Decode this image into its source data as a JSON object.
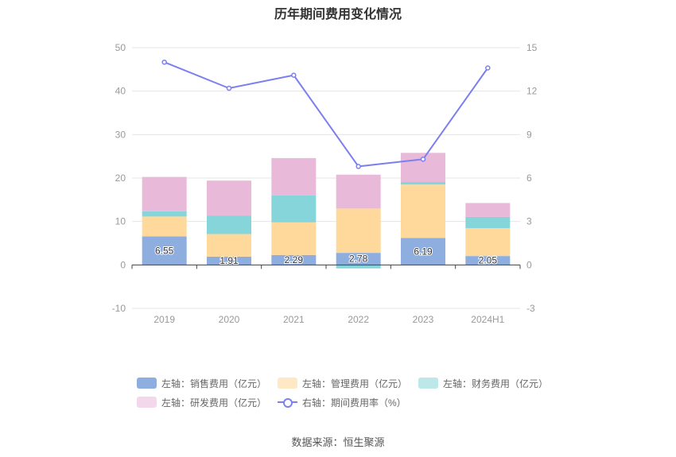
{
  "chart_data": {
    "type": "bar",
    "title": "历年期间费用变化情况",
    "categories": [
      "2019",
      "2020",
      "2021",
      "2022",
      "2023",
      "2024H1"
    ],
    "left_axis": {
      "ylim": [
        -10,
        50
      ],
      "ticks": [
        "-10",
        "0",
        "10",
        "20",
        "30",
        "40",
        "50"
      ]
    },
    "right_axis": {
      "ylim": [
        -3,
        15
      ],
      "ticks": [
        "-3",
        "0",
        "3",
        "6",
        "9",
        "12",
        "15"
      ]
    },
    "grid": true,
    "legend_position": "bottom",
    "series": [
      {
        "name": "左轴：销售费用（亿元）",
        "kind": "bar",
        "color": "#8eaee0",
        "values": [
          6.55,
          1.91,
          2.29,
          2.78,
          6.19,
          2.05
        ],
        "labels": [
          "6.55",
          "1.91",
          "2.29",
          "2.78",
          "6.19",
          "2.05"
        ]
      },
      {
        "name": "左轴：管理费用（亿元）",
        "kind": "bar",
        "color": "#ffd99c",
        "values": [
          4.6,
          5.2,
          7.5,
          10.2,
          12.3,
          6.4
        ]
      },
      {
        "name": "左轴：财务费用（亿元）",
        "kind": "bar",
        "color": "#86d5da",
        "values": [
          1.2,
          4.2,
          6.2,
          -0.8,
          0.6,
          2.6
        ]
      },
      {
        "name": "左轴：研发费用（亿元）",
        "kind": "bar",
        "color": "#e8b9d9",
        "values": [
          7.9,
          8.1,
          8.6,
          7.8,
          6.7,
          3.2
        ]
      },
      {
        "name": "右轴：期间费用率（%）",
        "kind": "line",
        "color": "#7b7ff0",
        "values": [
          14.0,
          12.2,
          13.1,
          6.8,
          7.3,
          13.6
        ]
      }
    ]
  },
  "source": "数据来源：恒生聚源"
}
